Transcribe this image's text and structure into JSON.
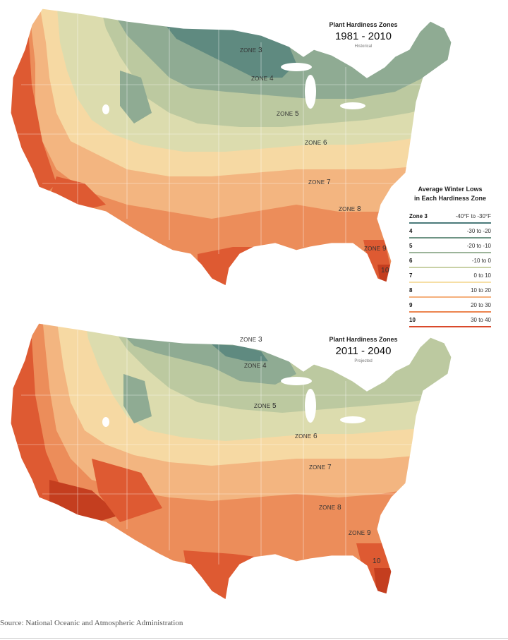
{
  "maps": [
    {
      "title": "Plant Hardiness Zones",
      "period": "1981 - 2010",
      "note": "Historical",
      "zone_labels": [
        {
          "id": "z3",
          "prefix": "ZONE",
          "num": "3"
        },
        {
          "id": "z4",
          "prefix": "ZONE",
          "num": "4"
        },
        {
          "id": "z5",
          "prefix": "ZONE",
          "num": "5"
        },
        {
          "id": "z6",
          "prefix": "ZONE",
          "num": "6"
        },
        {
          "id": "z7",
          "prefix": "ZONE",
          "num": "7"
        },
        {
          "id": "z8",
          "prefix": "ZONE",
          "num": "8"
        },
        {
          "id": "z9",
          "prefix": "ZONE",
          "num": "9"
        },
        {
          "id": "z10",
          "prefix": "",
          "num": "10"
        }
      ]
    },
    {
      "title": "Plant Hardiness Zones",
      "period": "2011 - 2040",
      "note": "Projected",
      "zone_labels": [
        {
          "id": "z3",
          "prefix": "ZONE",
          "num": "3"
        },
        {
          "id": "z4",
          "prefix": "ZONE",
          "num": "4"
        },
        {
          "id": "z5",
          "prefix": "ZONE",
          "num": "5"
        },
        {
          "id": "z6",
          "prefix": "ZONE",
          "num": "6"
        },
        {
          "id": "z7",
          "prefix": "ZONE",
          "num": "7"
        },
        {
          "id": "z8",
          "prefix": "ZONE",
          "num": "8"
        },
        {
          "id": "z9",
          "prefix": "ZONE",
          "num": "9"
        },
        {
          "id": "z10",
          "prefix": "",
          "num": "10"
        }
      ]
    }
  ],
  "legend": {
    "title_line1": "Average Winter Lows",
    "title_line2": "in Each Hardiness Zone",
    "rows": [
      {
        "zone": "Zone 3",
        "range": "-40°F to -30°F",
        "color": "#4a7a7a"
      },
      {
        "zone": "4",
        "range": "-30 to -20",
        "color": "#6e9484"
      },
      {
        "zone": "5",
        "range": "-20 to -10",
        "color": "#9cb49a"
      },
      {
        "zone": "6",
        "range": "-10 to 0",
        "color": "#c9d1a6"
      },
      {
        "zone": "7",
        "range": "0 to 10",
        "color": "#f6dfa6"
      },
      {
        "zone": "8",
        "range": "10 to 20",
        "color": "#f5b07c"
      },
      {
        "zone": "9",
        "range": "20 to 30",
        "color": "#ec8550"
      },
      {
        "zone": "10",
        "range": "30 to 40",
        "color": "#d9492a"
      }
    ]
  },
  "source": "Source: National Oceanic and Atmospheric Administration",
  "zone_colors": {
    "z3": "#5f8a80",
    "z4": "#8fab93",
    "z5": "#bcc9a0",
    "z6": "#dcdcae",
    "z7": "#f6d9a3",
    "z8": "#f3b580",
    "z9": "#ec8d5a",
    "z10": "#de5a32",
    "z11": "#c43e1f"
  }
}
